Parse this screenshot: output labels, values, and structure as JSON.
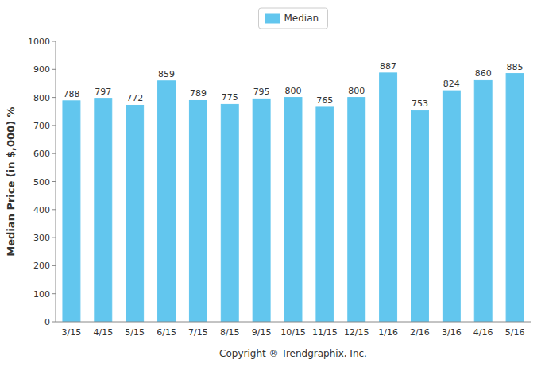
{
  "chart_data": {
    "type": "bar",
    "xlabel": "Copyright ® Trendgraphix, Inc.",
    "ylabel": "Median Price (in $,000) %",
    "categories": [
      "3/15",
      "4/15",
      "5/15",
      "6/15",
      "7/15",
      "8/15",
      "9/15",
      "10/15",
      "11/15",
      "12/15",
      "1/16",
      "2/16",
      "3/16",
      "4/16",
      "5/16"
    ],
    "series": [
      {
        "name": "Median",
        "color": "#62C6EE",
        "values": [
          788,
          797,
          772,
          859,
          789,
          775,
          795,
          800,
          765,
          800,
          887,
          753,
          824,
          860,
          885
        ]
      }
    ],
    "ylim": [
      0,
      1000
    ],
    "yticks": [
      0,
      100,
      200,
      300,
      400,
      500,
      600,
      700,
      800,
      900,
      1000
    ],
    "grid": false,
    "legend": "top",
    "data_labels": true
  }
}
